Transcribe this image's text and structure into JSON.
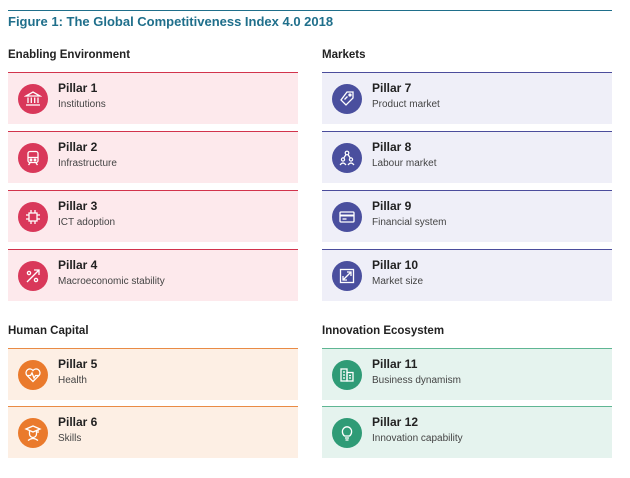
{
  "figure": {
    "title": "Figure 1: The Global Competitiveness Index 4.0 2018"
  },
  "groups": [
    {
      "title": "Enabling Environment",
      "pillars": [
        {
          "pillar": "Pillar 1",
          "label": "Institutions",
          "icon": "institution-icon"
        },
        {
          "pillar": "Pillar 2",
          "label": "Infrastructure",
          "icon": "train-icon"
        },
        {
          "pillar": "Pillar 3",
          "label": "ICT adoption",
          "icon": "chip-icon"
        },
        {
          "pillar": "Pillar 4",
          "label": "Macroeconomic stability",
          "icon": "percent-icon"
        }
      ]
    },
    {
      "title": "Markets",
      "pillars": [
        {
          "pillar": "Pillar 7",
          "label": "Product market",
          "icon": "price-tag-icon"
        },
        {
          "pillar": "Pillar 8",
          "label": "Labour market",
          "icon": "people-network-icon"
        },
        {
          "pillar": "Pillar 9",
          "label": "Financial system",
          "icon": "credit-card-icon"
        },
        {
          "pillar": "Pillar 10",
          "label": "Market size",
          "icon": "expand-icon"
        }
      ]
    },
    {
      "title": "Human Capital",
      "pillars": [
        {
          "pillar": "Pillar 5",
          "label": "Health",
          "icon": "heart-pulse-icon"
        },
        {
          "pillar": "Pillar 6",
          "label": "Skills",
          "icon": "graduate-icon"
        }
      ]
    },
    {
      "title": "Innovation Ecosystem",
      "pillars": [
        {
          "pillar": "Pillar 11",
          "label": "Business dynamism",
          "icon": "buildings-icon"
        },
        {
          "pillar": "Pillar 12",
          "label": "Innovation capability",
          "icon": "lightbulb-icon"
        }
      ]
    }
  ],
  "colors": {
    "enabling_environment": "#d9385a",
    "markets": "#4a4f9e",
    "human_capital": "#ea7a2c",
    "innovation_ecosystem": "#2f9b76",
    "title": "#1f6f8b"
  }
}
